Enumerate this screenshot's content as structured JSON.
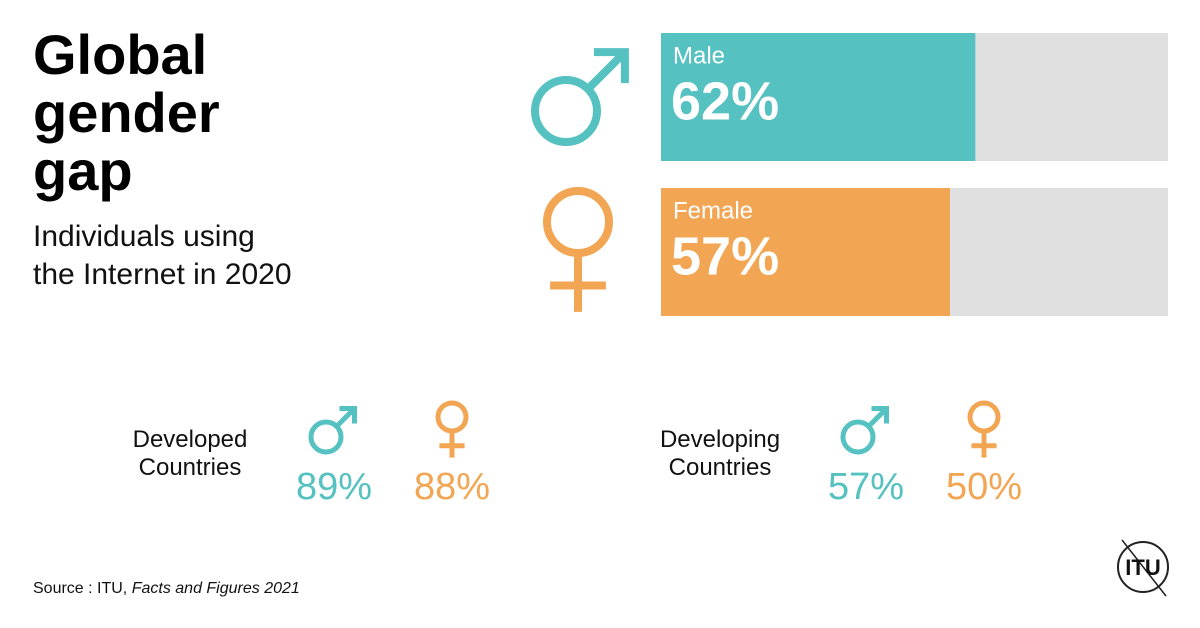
{
  "chart_data": {
    "type": "bar",
    "orientation": "horizontal",
    "title": "Global gender gap",
    "subtitle": "Individuals using the Internet in 2020",
    "categories": [
      "Male",
      "Female"
    ],
    "values": [
      62,
      57
    ],
    "value_labels": [
      "62%",
      "57%"
    ],
    "colors": [
      "#56c1c1",
      "#f2a654"
    ],
    "track_color": "#e0e0e0",
    "xlim": [
      0,
      100
    ]
  },
  "breakdown": {
    "groups": [
      {
        "label": "Developed Countries",
        "values": [
          89,
          88
        ],
        "value_labels": [
          "89%",
          "88%"
        ]
      },
      {
        "label": "Developing Countries",
        "values": [
          57,
          50
        ],
        "value_labels": [
          "57%",
          "50%"
        ]
      }
    ]
  },
  "source": {
    "prefix": "Source : ITU,",
    "title": "Facts and Figures 2021"
  },
  "logo": "ITU"
}
